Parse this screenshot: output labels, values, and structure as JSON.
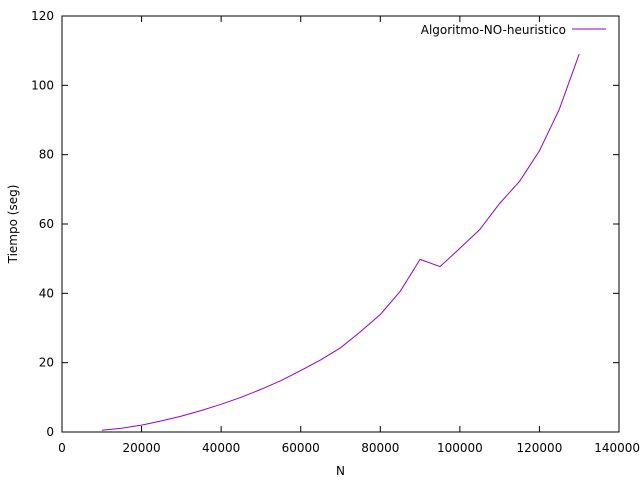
{
  "chart_data": {
    "type": "line",
    "title": "",
    "xlabel": "N",
    "ylabel": "Tiempo (seg)",
    "xlim": [
      0,
      140000
    ],
    "ylim": [
      0,
      120
    ],
    "xticks": [
      0,
      20000,
      40000,
      60000,
      80000,
      100000,
      120000,
      140000
    ],
    "yticks": [
      0,
      20,
      40,
      60,
      80,
      100,
      120
    ],
    "grid": false,
    "legend_position": "top-right",
    "series": [
      {
        "name": "Algoritmo-NO-heuristico",
        "color": "#9400d3",
        "x": [
          10000,
          15000,
          20000,
          25000,
          30000,
          35000,
          40000,
          45000,
          50000,
          55000,
          60000,
          65000,
          70000,
          75000,
          80000,
          85000,
          90000,
          95000,
          100000,
          105000,
          110000,
          115000,
          120000,
          125000,
          130000
        ],
        "y": [
          0.5,
          1.1,
          2.0,
          3.2,
          4.6,
          6.2,
          8.0,
          10.0,
          12.3,
          14.8,
          17.7,
          20.8,
          24.3,
          28.9,
          33.9,
          40.6,
          49.8,
          47.7,
          53.0,
          58.4,
          65.9,
          72.3,
          81.1,
          93.1,
          109.0
        ]
      }
    ]
  }
}
